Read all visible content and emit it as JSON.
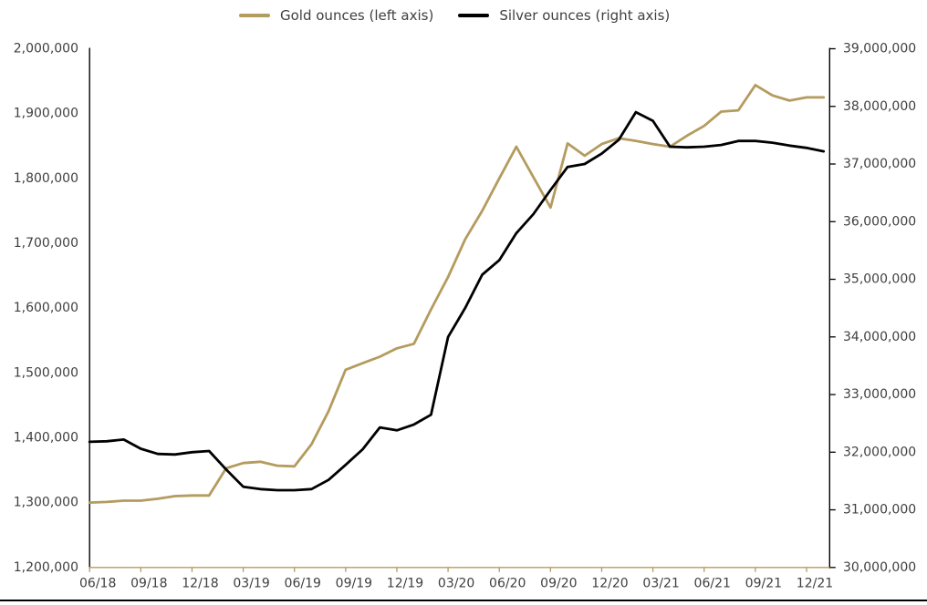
{
  "legend": {
    "items": [
      {
        "label": "Gold ounces (left axis)",
        "color": "#b49b5e"
      },
      {
        "label": "Silver ounces (right axis)",
        "color": "#000000"
      }
    ]
  },
  "chart_data": {
    "type": "line",
    "title": "",
    "grid": false,
    "legend_position": "top",
    "categories": [
      "06/18",
      "07/18",
      "08/18",
      "09/18",
      "10/18",
      "11/18",
      "12/18",
      "01/19",
      "02/19",
      "03/19",
      "04/19",
      "05/19",
      "06/19",
      "07/19",
      "08/19",
      "09/19",
      "10/19",
      "11/19",
      "12/19",
      "01/20",
      "02/20",
      "03/20",
      "04/20",
      "05/20",
      "06/20",
      "07/20",
      "08/20",
      "09/20",
      "10/20",
      "11/20",
      "12/20",
      "01/21",
      "02/21",
      "03/21",
      "04/21",
      "05/21",
      "06/21",
      "07/21",
      "08/21",
      "09/21",
      "10/21",
      "11/21",
      "12/21",
      "01/22"
    ],
    "x_tick_labels": [
      "06/18",
      "09/18",
      "12/18",
      "03/19",
      "06/19",
      "09/19",
      "12/19",
      "03/20",
      "06/20",
      "09/20",
      "12/20",
      "03/21",
      "06/21",
      "09/21",
      "12/21"
    ],
    "x_label_interval": 3,
    "series": [
      {
        "name": "Gold ounces (left axis)",
        "axis": "left",
        "color": "#b49b5e",
        "values": [
          1300000,
          1301000,
          1303000,
          1303000,
          1306000,
          1310000,
          1311000,
          1311000,
          1353000,
          1361000,
          1363000,
          1357000,
          1356000,
          1390000,
          1441000,
          1505000,
          1515000,
          1525000,
          1538000,
          1545000,
          1598000,
          1648000,
          1706000,
          1750000,
          1800000,
          1849000,
          1802000,
          1755000,
          1854000,
          1835000,
          1853000,
          1862000,
          1858000,
          1853000,
          1849000,
          1866000,
          1881000,
          1903000,
          1905000,
          1944000,
          1928000,
          1920000,
          1925000,
          1925000
        ]
      },
      {
        "name": "Silver ounces (right axis)",
        "axis": "right",
        "color": "#000000",
        "values": [
          32180000,
          32190000,
          32220000,
          32060000,
          31970000,
          31960000,
          32000000,
          32020000,
          31700000,
          31400000,
          31360000,
          31340000,
          31340000,
          31360000,
          31520000,
          31780000,
          32050000,
          32430000,
          32380000,
          32480000,
          32650000,
          34000000,
          34500000,
          35080000,
          35330000,
          35800000,
          36130000,
          36550000,
          36950000,
          37000000,
          37180000,
          37420000,
          37900000,
          37750000,
          37300000,
          37290000,
          37300000,
          37330000,
          37400000,
          37400000,
          37370000,
          37320000,
          37280000,
          37220000
        ]
      }
    ],
    "left_axis": {
      "min": 1200000,
      "max": 2000000,
      "step": 100000,
      "tick_labels": [
        "2,000,000",
        "1,900,000",
        "1,800,000",
        "1,700,000",
        "1,600,000",
        "1,500,000",
        "1,400,000",
        "1,300,000",
        "1,200,000"
      ]
    },
    "right_axis": {
      "min": 30000000,
      "max": 39000000,
      "step": 1000000,
      "tick_labels": [
        "39,000,000",
        "38,000,000",
        "37,000,000",
        "36,000,000",
        "35,000,000",
        "34,000,000",
        "33,000,000",
        "32,000,000",
        "31,000,000",
        "30,000,000"
      ]
    }
  },
  "colors": {
    "x_axis_line": "#b49b5e",
    "y_axis_line": "#000000",
    "tick_text": "#3f3f3f",
    "bottom_border": "#000000"
  }
}
